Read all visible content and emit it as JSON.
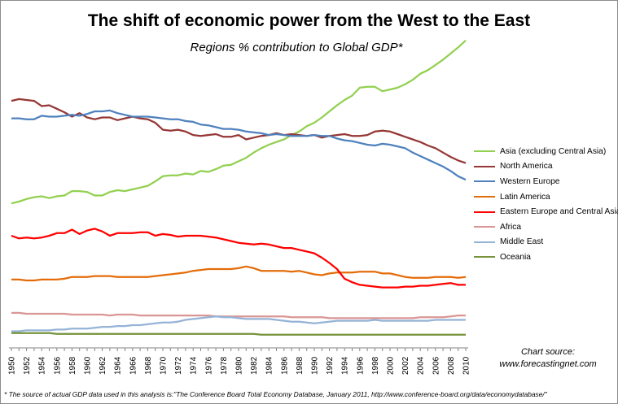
{
  "chart_data": {
    "type": "line",
    "title": "The shift of economic power from the West to the East",
    "subtitle": "Regions % contribution to Global GDP*",
    "x": [
      1950,
      1951,
      1952,
      1953,
      1954,
      1955,
      1956,
      1957,
      1958,
      1959,
      1960,
      1961,
      1962,
      1963,
      1964,
      1965,
      1966,
      1967,
      1968,
      1969,
      1970,
      1971,
      1972,
      1973,
      1974,
      1975,
      1976,
      1977,
      1978,
      1979,
      1980,
      1981,
      1982,
      1983,
      1984,
      1985,
      1986,
      1987,
      1988,
      1989,
      1990,
      1991,
      1992,
      1993,
      1994,
      1995,
      1996,
      1997,
      1998,
      1999,
      2000,
      2001,
      2002,
      2003,
      2004,
      2005,
      2006,
      2007,
      2008,
      2009,
      2010
    ],
    "x_tick_labels": [
      "1950",
      "1952",
      "1954",
      "1956",
      "1958",
      "1960",
      "1962",
      "1964",
      "1966",
      "1968",
      "1970",
      "1972",
      "1974",
      "1976",
      "1978",
      "1980",
      "1982",
      "1984",
      "1986",
      "1988",
      "1990",
      "1992",
      "1994",
      "1996",
      "1998",
      "2000",
      "2002",
      "2004",
      "2006",
      "2008",
      "2010"
    ],
    "ylim": [
      0,
      36
    ],
    "grid": false,
    "legend_position": "right",
    "series": [
      {
        "name": "Asia (excluding Central Asia)",
        "color": "#92d050",
        "values": [
          16.5,
          16.7,
          17.0,
          17.2,
          17.3,
          17.1,
          17.3,
          17.4,
          17.9,
          17.9,
          17.8,
          17.4,
          17.4,
          17.8,
          18.0,
          17.9,
          18.1,
          18.3,
          18.5,
          19.0,
          19.6,
          19.7,
          19.7,
          19.9,
          19.8,
          20.2,
          20.1,
          20.4,
          20.8,
          20.9,
          21.3,
          21.7,
          22.3,
          22.8,
          23.2,
          23.5,
          23.8,
          24.3,
          24.7,
          25.3,
          25.7,
          26.3,
          27.0,
          27.7,
          28.3,
          28.8,
          29.7,
          29.8,
          29.8,
          29.3,
          29.5,
          29.7,
          30.1,
          30.6,
          31.3,
          31.7,
          32.3,
          32.9,
          33.6,
          34.3,
          35.1
        ]
      },
      {
        "name": "North America",
        "color": "#953735",
        "values": [
          28.2,
          28.4,
          28.3,
          28.2,
          27.6,
          27.7,
          27.3,
          26.9,
          26.4,
          26.8,
          26.3,
          26.1,
          26.3,
          26.3,
          26.0,
          26.2,
          26.4,
          26.2,
          26.1,
          25.7,
          24.9,
          24.8,
          24.9,
          24.7,
          24.3,
          24.2,
          24.3,
          24.4,
          24.1,
          24.1,
          24.3,
          23.8,
          24.0,
          24.2,
          24.3,
          24.5,
          24.3,
          24.4,
          24.3,
          24.2,
          24.3,
          24.0,
          24.2,
          24.3,
          24.4,
          24.2,
          24.2,
          24.3,
          24.7,
          24.8,
          24.7,
          24.4,
          24.1,
          23.8,
          23.5,
          23.1,
          22.8,
          22.3,
          21.8,
          21.4,
          21.1
        ]
      },
      {
        "name": "Western Europe",
        "color": "#4f81bd",
        "values": [
          26.2,
          26.2,
          26.1,
          26.1,
          26.5,
          26.4,
          26.4,
          26.5,
          26.6,
          26.5,
          26.7,
          27.0,
          27.0,
          27.1,
          26.8,
          26.6,
          26.4,
          26.4,
          26.4,
          26.3,
          26.2,
          26.1,
          26.1,
          25.9,
          25.8,
          25.5,
          25.4,
          25.2,
          25.0,
          25.0,
          24.9,
          24.7,
          24.6,
          24.5,
          24.3,
          24.4,
          24.3,
          24.2,
          24.2,
          24.2,
          24.3,
          24.2,
          24.2,
          23.9,
          23.7,
          23.6,
          23.4,
          23.2,
          23.1,
          23.3,
          23.2,
          23.0,
          22.8,
          22.3,
          21.9,
          21.5,
          21.1,
          20.7,
          20.2,
          19.6,
          19.2
        ]
      },
      {
        "name": "Latin America",
        "color": "#e46c0a",
        "values": [
          7.8,
          7.8,
          7.7,
          7.7,
          7.8,
          7.8,
          7.8,
          7.9,
          8.1,
          8.1,
          8.1,
          8.2,
          8.2,
          8.2,
          8.1,
          8.1,
          8.1,
          8.1,
          8.1,
          8.2,
          8.3,
          8.4,
          8.5,
          8.6,
          8.8,
          8.9,
          9.0,
          9.0,
          9.0,
          9.0,
          9.1,
          9.3,
          9.1,
          8.8,
          8.8,
          8.8,
          8.8,
          8.7,
          8.8,
          8.6,
          8.4,
          8.3,
          8.5,
          8.6,
          8.6,
          8.6,
          8.7,
          8.7,
          8.7,
          8.5,
          8.5,
          8.3,
          8.1,
          8.0,
          8.0,
          8.0,
          8.1,
          8.1,
          8.1,
          8.0,
          8.1
        ]
      },
      {
        "name": "Eastern Europe and Central Asia",
        "color": "#ff0000",
        "values": [
          12.8,
          12.5,
          12.6,
          12.5,
          12.6,
          12.8,
          13.1,
          13.1,
          13.5,
          13.0,
          13.4,
          13.6,
          13.3,
          12.8,
          13.1,
          13.1,
          13.1,
          13.2,
          13.2,
          12.8,
          13.0,
          12.9,
          12.7,
          12.8,
          12.8,
          12.8,
          12.7,
          12.6,
          12.4,
          12.2,
          12.0,
          11.9,
          11.8,
          11.9,
          11.8,
          11.6,
          11.4,
          11.4,
          11.2,
          11.0,
          10.8,
          10.3,
          9.7,
          9.0,
          7.9,
          7.5,
          7.2,
          7.1,
          7.0,
          6.9,
          6.9,
          6.9,
          7.0,
          7.0,
          7.1,
          7.1,
          7.2,
          7.3,
          7.4,
          7.2,
          7.2
        ]
      },
      {
        "name": "Africa",
        "color": "#d99694",
        "values": [
          4.0,
          4.0,
          3.9,
          3.9,
          3.9,
          3.9,
          3.9,
          3.9,
          3.8,
          3.8,
          3.8,
          3.8,
          3.8,
          3.7,
          3.8,
          3.8,
          3.8,
          3.7,
          3.7,
          3.7,
          3.7,
          3.7,
          3.7,
          3.7,
          3.7,
          3.7,
          3.7,
          3.6,
          3.6,
          3.6,
          3.6,
          3.6,
          3.6,
          3.6,
          3.6,
          3.6,
          3.6,
          3.5,
          3.5,
          3.5,
          3.5,
          3.5,
          3.4,
          3.4,
          3.4,
          3.4,
          3.4,
          3.4,
          3.4,
          3.4,
          3.4,
          3.4,
          3.4,
          3.4,
          3.5,
          3.5,
          3.5,
          3.5,
          3.6,
          3.7,
          3.7
        ]
      },
      {
        "name": "Middle East",
        "color": "#95b3d7",
        "values": [
          1.9,
          1.9,
          2.0,
          2.0,
          2.0,
          2.0,
          2.1,
          2.1,
          2.2,
          2.2,
          2.2,
          2.3,
          2.4,
          2.4,
          2.5,
          2.5,
          2.6,
          2.6,
          2.7,
          2.8,
          2.9,
          2.9,
          3.0,
          3.2,
          3.3,
          3.4,
          3.5,
          3.6,
          3.5,
          3.5,
          3.4,
          3.3,
          3.3,
          3.3,
          3.3,
          3.2,
          3.1,
          3.0,
          3.0,
          2.9,
          2.8,
          2.9,
          3.0,
          3.1,
          3.1,
          3.1,
          3.1,
          3.1,
          3.2,
          3.1,
          3.1,
          3.1,
          3.1,
          3.1,
          3.1,
          3.1,
          3.2,
          3.2,
          3.2,
          3.2,
          3.2
        ]
      },
      {
        "name": "Oceania",
        "color": "#77933c",
        "values": [
          1.7,
          1.7,
          1.7,
          1.7,
          1.7,
          1.7,
          1.6,
          1.6,
          1.6,
          1.6,
          1.6,
          1.6,
          1.6,
          1.6,
          1.6,
          1.6,
          1.6,
          1.6,
          1.6,
          1.6,
          1.6,
          1.6,
          1.6,
          1.6,
          1.6,
          1.6,
          1.6,
          1.6,
          1.6,
          1.6,
          1.6,
          1.6,
          1.6,
          1.5,
          1.5,
          1.5,
          1.5,
          1.5,
          1.5,
          1.5,
          1.5,
          1.5,
          1.5,
          1.5,
          1.5,
          1.5,
          1.5,
          1.5,
          1.5,
          1.5,
          1.5,
          1.5,
          1.5,
          1.5,
          1.5,
          1.5,
          1.5,
          1.5,
          1.5,
          1.5,
          1.5
        ]
      }
    ]
  },
  "source_note": [
    "Chart source:",
    "www.forecastingnet.com"
  ],
  "footnote": "* The source of actual GDP data used in this analysis is:\"The Conference Board Total Economy Database, January 2011, http://www.conference-board.org/data/economydatabase/\""
}
